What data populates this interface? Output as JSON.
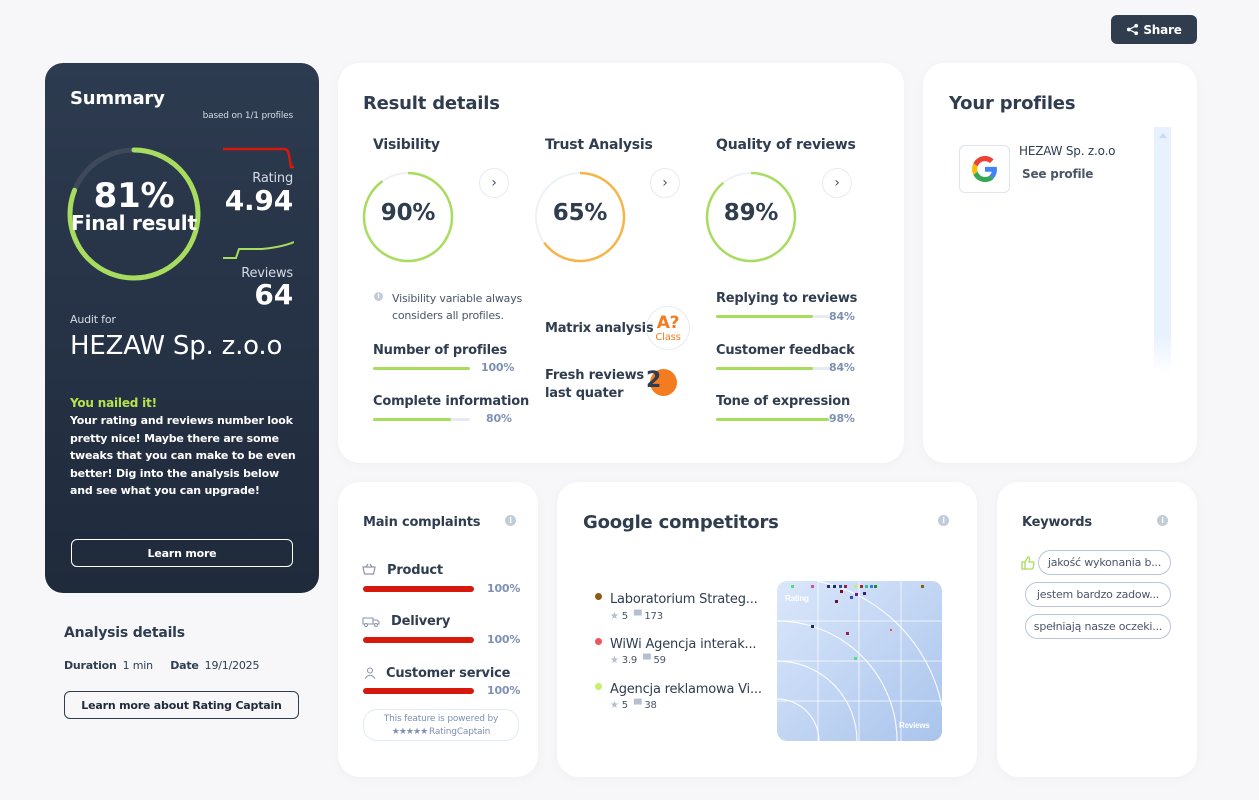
{
  "share": {
    "label": "Share",
    "icon": "share-icon"
  },
  "summary": {
    "title": "Summary",
    "based_on": "based on 1/1 profiles",
    "final_pct": "81%",
    "final_label": "Final result",
    "final_fraction": 0.81,
    "rating_label": "Rating",
    "rating_value": "4.94",
    "reviews_label": "Reviews",
    "reviews_value": "64",
    "audit_for_label": "Audit for",
    "company": "HEZAW Sp. z.o.o",
    "headline": "You nailed it!",
    "message": "Your rating and reviews number look pretty nice! Maybe there are some tweaks that you can make to be even better! Dig into the analysis below and see what you can upgrade!",
    "learn_more": "Learn more",
    "colors": {
      "ring": "#a8dc5e",
      "rating_line": "#d7190c",
      "reviews_line": "#a8dc5e"
    }
  },
  "analysis": {
    "title": "Analysis details",
    "duration_label": "Duration",
    "duration_value": "1 min",
    "date_label": "Date",
    "date_value": "19/1/2025",
    "about_button": "Learn more about Rating Captain"
  },
  "result": {
    "title": "Result details",
    "visibility": {
      "title": "Visibility",
      "value": "90%",
      "fraction": 0.9,
      "color": "#a8dc5e",
      "note": "Visibility variable always considers all profiles.",
      "metrics": [
        {
          "label": "Number of profiles",
          "pct": "100%",
          "fraction": 1.0
        },
        {
          "label": "Complete information",
          "pct": "80%",
          "fraction": 0.8
        }
      ]
    },
    "trust": {
      "title": "Trust Analysis",
      "value": "65%",
      "fraction": 0.65,
      "color": "#f6b54a",
      "matrix_label": "Matrix analysis",
      "matrix_grade": "A?",
      "matrix_class": "Class",
      "fresh_label_1": "Fresh reviews",
      "fresh_label_2": "last quater",
      "fresh_value": "2"
    },
    "quality": {
      "title": "Quality of reviews",
      "value": "89%",
      "fraction": 0.89,
      "color": "#a8dc5e",
      "metrics": [
        {
          "label": "Replying to reviews",
          "pct": "84%",
          "fraction": 0.84
        },
        {
          "label": "Customer feedback",
          "pct": "84%",
          "fraction": 0.84
        },
        {
          "label": "Tone of expression",
          "pct": "98%",
          "fraction": 0.98
        }
      ]
    }
  },
  "profiles": {
    "title": "Your profiles",
    "items": [
      {
        "name": "HEZAW Sp. z.o.o",
        "link": "See profile",
        "icon": "google-icon"
      }
    ]
  },
  "complaints": {
    "title": "Main complaints",
    "items": [
      {
        "label": "Product",
        "pct": "100%",
        "fraction": 1.0,
        "icon": "basket-icon"
      },
      {
        "label": "Delivery",
        "pct": "100%",
        "fraction": 1.0,
        "icon": "truck-icon"
      },
      {
        "label": "Customer service",
        "pct": "100%",
        "fraction": 1.0,
        "icon": "person-icon"
      }
    ],
    "powered_line1": "This feature is powered by",
    "powered_line2": "RatingCaptain"
  },
  "competitors": {
    "title": "Google competitors",
    "items": [
      {
        "name": "Laboratorium Strateg...",
        "rating": "5",
        "reviews": "173",
        "color": "#8b5a14"
      },
      {
        "name": "WiWi Agencja interak...",
        "rating": "3.9",
        "reviews": "59",
        "color": "#f0545c"
      },
      {
        "name": "Agencja reklamowa Vi...",
        "rating": "5",
        "reviews": "38",
        "color": "#c4f06e"
      }
    ],
    "map_rating_label": "Rating",
    "map_reviews_label": "Reviews"
  },
  "keywords": {
    "title": "Keywords",
    "items": [
      "jakość wykonania b...",
      "jestem bardzo zadow...",
      "spełniają nasze oczeki..."
    ]
  }
}
